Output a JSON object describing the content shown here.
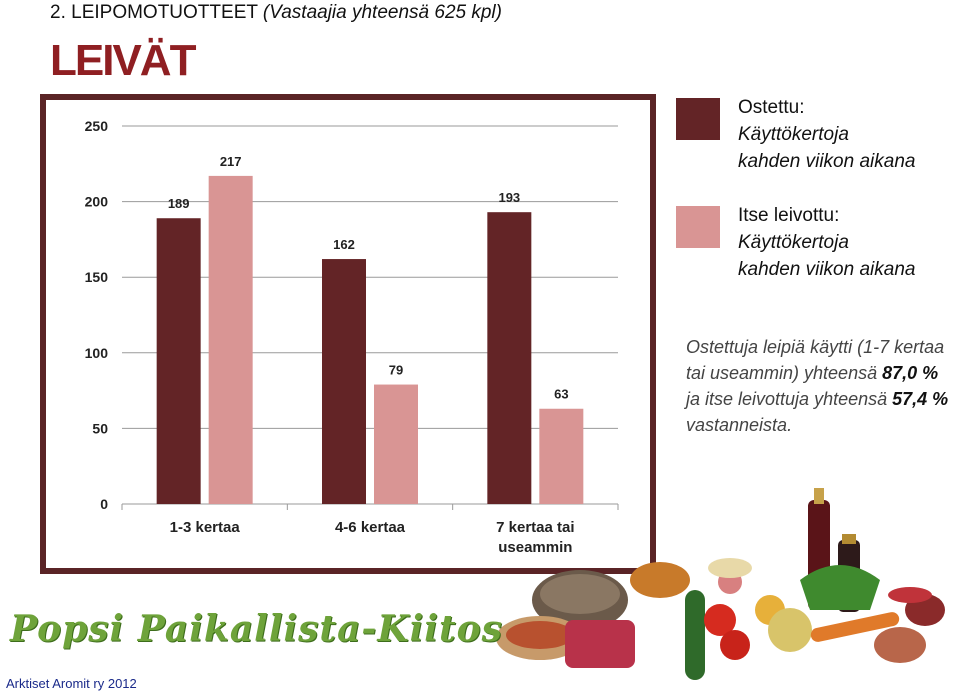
{
  "header": {
    "main": "2. LEIPOMOTUOTTEET",
    "sub": "(Vastaajia yhteensä 625 kpl)"
  },
  "section_title": "LEIVÄT",
  "legend": [
    {
      "l1": "Ostettu:",
      "l2": "Käyttökertoja",
      "l3": "kahden viikon aikana",
      "color": "#632426"
    },
    {
      "l1": "Itse leivottu:",
      "l2": "Käyttökertoja",
      "l3": "kahden viikon aikana",
      "color": "#d99594"
    }
  ],
  "note": {
    "p1": "Ostettuja leipiä käytti (1-7 kertaa tai useammin) yhteensä ",
    "v1": "87,0 %",
    "p2": " ja itse leivottuja yhteensä ",
    "v2": "57,4 %",
    "p3": " vastanneista."
  },
  "brand": "Popsi Paikallista-Kiitos",
  "footer": "Arktiset Aromit ry 2012",
  "chart_data": {
    "type": "bar",
    "categories": [
      "1-3 kertaa",
      "4-6 kertaa",
      "7 kertaa tai useammin"
    ],
    "series": [
      {
        "name": "Ostettu",
        "values": [
          189,
          162,
          193
        ],
        "color": "#632426"
      },
      {
        "name": "Itse leivottu",
        "values": [
          217,
          79,
          63
        ],
        "color": "#d99594"
      }
    ],
    "yticks": [
      0,
      50,
      100,
      150,
      200,
      250
    ],
    "ylim": [
      0,
      250
    ],
    "grid": true,
    "legend_position": "right"
  }
}
